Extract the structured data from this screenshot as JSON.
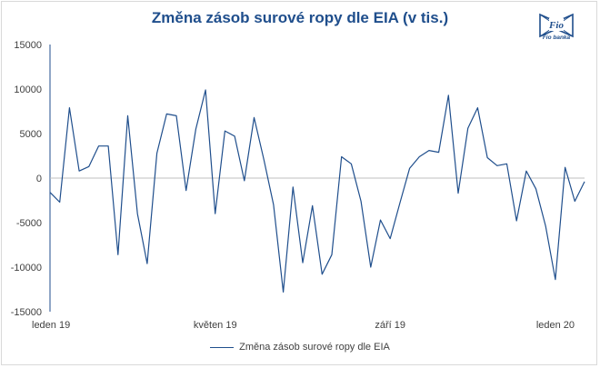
{
  "chart_data": {
    "type": "line",
    "title": "Změna zásob surové ropy dle EIA (v tis.)",
    "xlabel": "",
    "ylabel": "",
    "ylim": [
      -15000,
      15000
    ],
    "yticks": [
      15000,
      10000,
      5000,
      0,
      -5000,
      -10000,
      -15000
    ],
    "xtick_labels": [
      "leden 19",
      "květen 19",
      "září 19",
      "leden 20"
    ],
    "xtick_index": [
      0,
      17,
      35,
      52
    ],
    "legend_position": "bottom",
    "grid": false,
    "series": [
      {
        "name": "Změna zásob surové ropy dle EIA",
        "color": "#1f4e8c",
        "values": [
          -1600,
          -2700,
          7900,
          800,
          1300,
          3600,
          3600,
          -8600,
          7000,
          -4000,
          -9600,
          2800,
          7200,
          7000,
          -1400,
          5500,
          9900,
          -4000,
          5300,
          4700,
          -300,
          6800,
          2100,
          -3000,
          -12800,
          -1000,
          -9500,
          -3100,
          -10800,
          -8600,
          2400,
          1600,
          -2600,
          -10000,
          -4700,
          -6800,
          -2800,
          1100,
          2400,
          3100,
          2900,
          9300,
          -1700,
          5600,
          7900,
          2300,
          1400,
          1600,
          -4800,
          800,
          -1200,
          -5400,
          -11400,
          1200,
          -2600,
          -400
        ]
      }
    ]
  },
  "logo": {
    "text": "Fio banka"
  }
}
